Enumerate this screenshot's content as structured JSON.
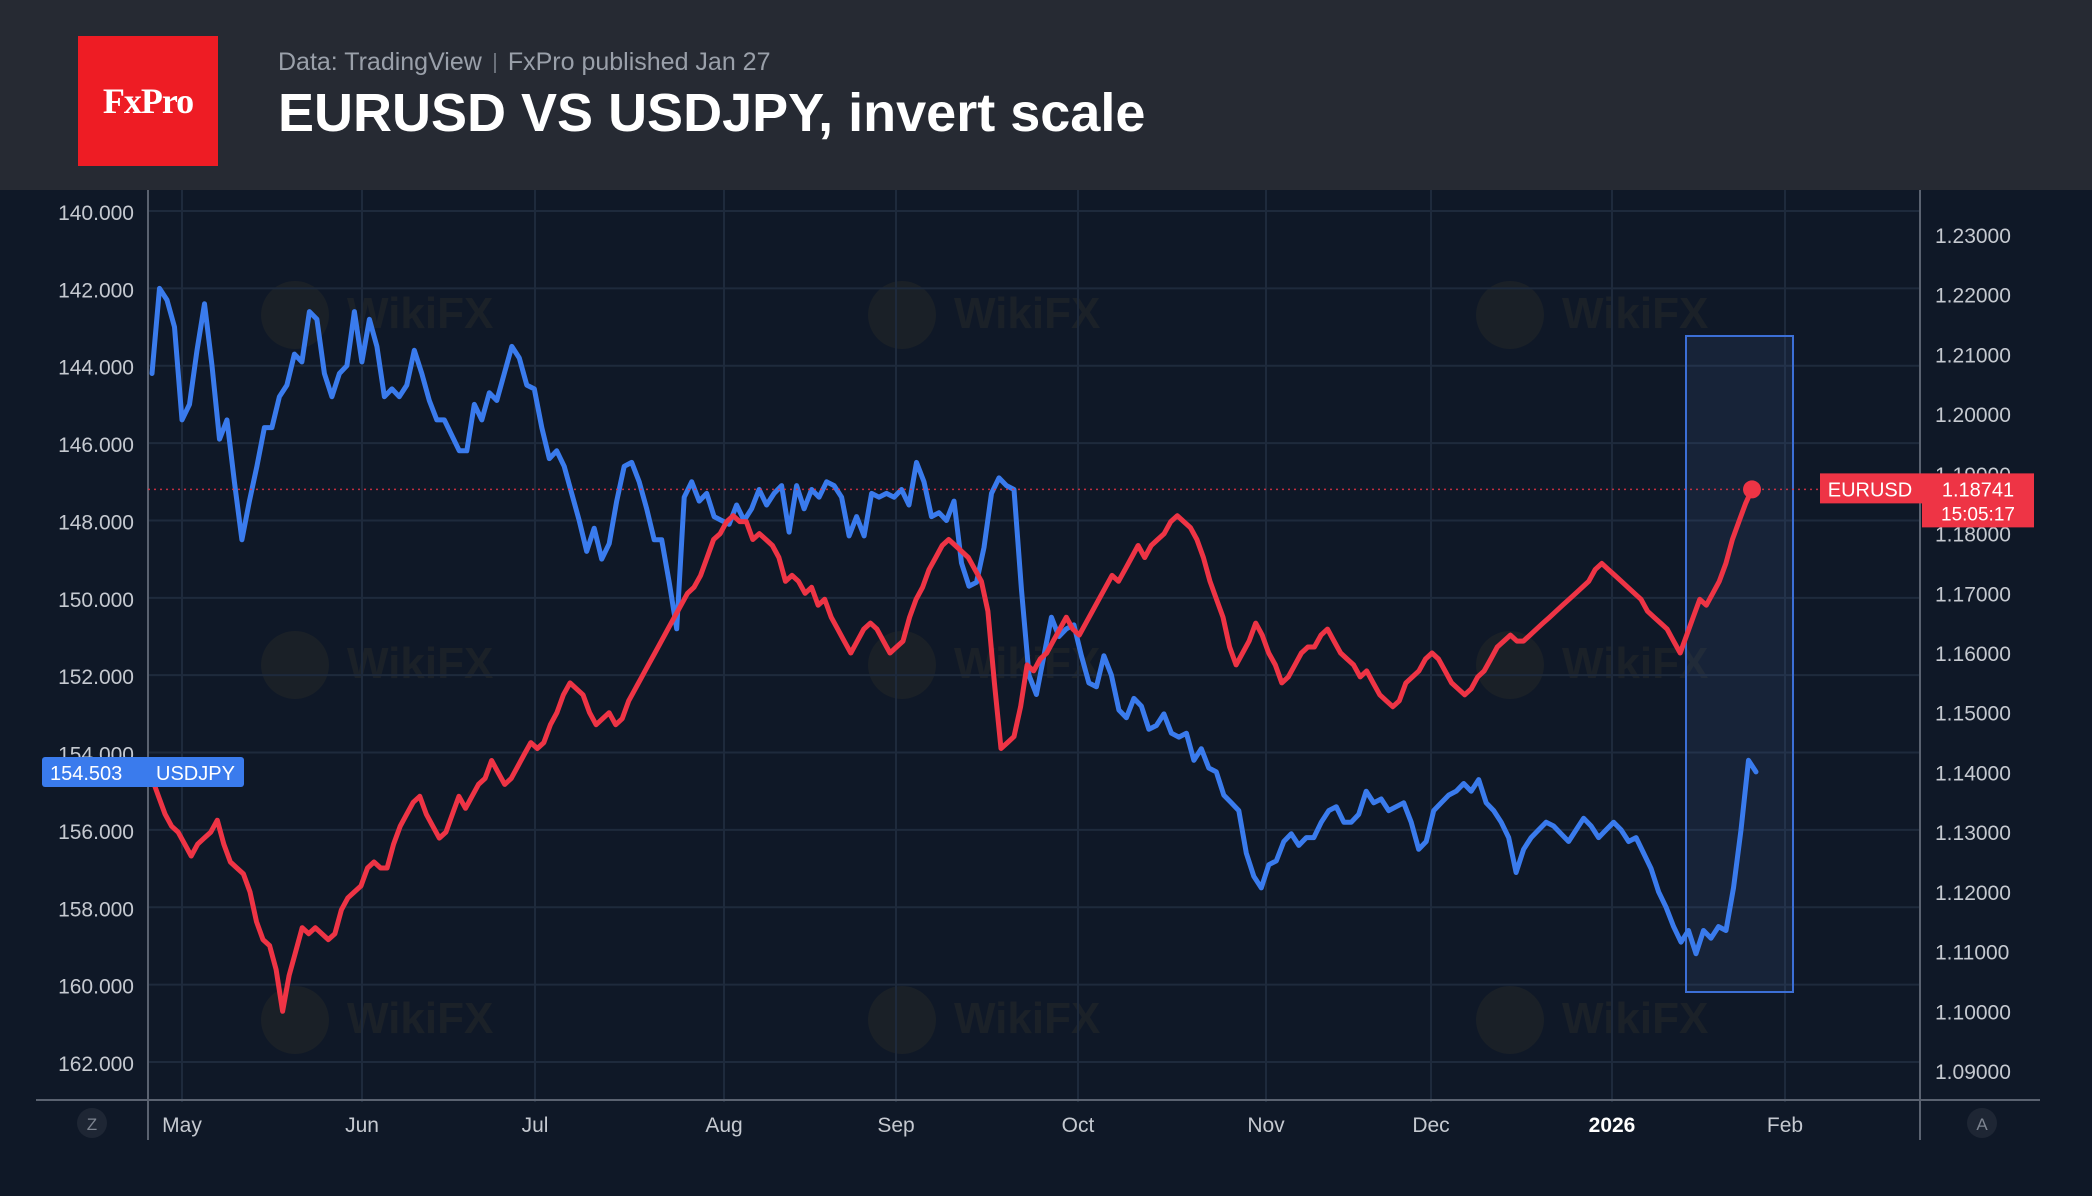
{
  "header": {
    "logo_text": "FxPro",
    "source": "Data: TradingView",
    "published": "FxPro published Jan 27",
    "title": "EURUSD VS USDJPY, invert scale"
  },
  "colors": {
    "background": "#0f1827",
    "header_bg": "#262a33",
    "usdjpy": "#3a7bed",
    "eurusd": "#ee3445",
    "grid": "#1e2a3c",
    "axis_text": "#c5c9d0",
    "highlight_box": "#3c6fd6"
  },
  "watermark_text": "WikiFX",
  "chart_data": {
    "type": "line",
    "x_axis": {
      "ticks": [
        "May",
        "Jun",
        "Jul",
        "Aug",
        "Sep",
        "Oct",
        "Nov",
        "Dec",
        "2026",
        "Feb"
      ],
      "bold_tick": "2026"
    },
    "left_axis": {
      "series": "USDJPY",
      "inverted": true,
      "ticks": [
        "140.000",
        "142.000",
        "144.000",
        "146.000",
        "148.000",
        "150.000",
        "152.000",
        "154.000",
        "156.000",
        "158.000",
        "160.000",
        "162.000"
      ],
      "range": [
        140,
        162
      ]
    },
    "right_axis": {
      "series": "EURUSD",
      "ticks": [
        "1.23000",
        "1.22000",
        "1.21000",
        "1.20000",
        "1.19000",
        "1.18000",
        "1.17000",
        "1.16000",
        "1.15000",
        "1.14000",
        "1.13000",
        "1.12000",
        "1.11000",
        "1.10000",
        "1.09000"
      ],
      "range": [
        1.09,
        1.23
      ]
    },
    "corner_buttons": {
      "left": "Z",
      "right": "A"
    },
    "series": [
      {
        "name": "USDJPY",
        "axis": "left",
        "last_value_label": "154.503",
        "values": [
          144.2,
          142.0,
          142.3,
          143.0,
          145.4,
          145.0,
          143.6,
          142.4,
          144.0,
          145.9,
          145.4,
          147.0,
          148.5,
          147.5,
          146.6,
          145.6,
          145.6,
          144.8,
          144.5,
          143.7,
          143.9,
          142.6,
          142.8,
          144.2,
          144.8,
          144.2,
          144.0,
          142.6,
          143.9,
          142.8,
          143.5,
          144.8,
          144.6,
          144.8,
          144.5,
          143.6,
          144.2,
          144.9,
          145.4,
          145.4,
          145.8,
          146.2,
          146.2,
          145.0,
          145.4,
          144.7,
          144.9,
          144.2,
          143.5,
          143.8,
          144.5,
          144.6,
          145.6,
          146.4,
          146.2,
          146.6,
          147.3,
          148.0,
          148.8,
          148.2,
          149.0,
          148.6,
          147.5,
          146.6,
          146.5,
          147.0,
          147.7,
          148.5,
          148.5,
          149.6,
          150.8,
          147.4,
          147.0,
          147.5,
          147.3,
          147.9,
          148.0,
          148.1,
          147.6,
          148.0,
          147.7,
          147.2,
          147.6,
          147.3,
          147.1,
          148.3,
          147.1,
          147.7,
          147.2,
          147.4,
          147.0,
          147.1,
          147.4,
          148.4,
          147.9,
          148.4,
          147.3,
          147.4,
          147.3,
          147.4,
          147.2,
          147.6,
          146.5,
          147.0,
          147.9,
          147.8,
          148.0,
          147.5,
          149.1,
          149.7,
          149.6,
          148.7,
          147.3,
          146.9,
          147.1,
          147.2,
          149.8,
          152.0,
          152.5,
          151.5,
          150.5,
          151.0,
          150.8,
          150.7,
          151.5,
          152.2,
          152.3,
          151.5,
          152.0,
          152.9,
          153.1,
          152.6,
          152.8,
          153.4,
          153.3,
          153.0,
          153.5,
          153.6,
          153.5,
          154.2,
          153.9,
          154.4,
          154.5,
          155.1,
          155.3,
          155.5,
          156.6,
          157.2,
          157.5,
          156.9,
          156.8,
          156.3,
          156.1,
          156.4,
          156.2,
          156.2,
          155.8,
          155.5,
          155.4,
          155.8,
          155.8,
          155.6,
          155.0,
          155.3,
          155.2,
          155.5,
          155.4,
          155.3,
          155.8,
          156.5,
          156.3,
          155.5,
          155.3,
          155.1,
          155.0,
          154.8,
          155.0,
          154.7,
          155.3,
          155.5,
          155.8,
          156.2,
          157.1,
          156.5,
          156.2,
          156.0,
          155.8,
          155.9,
          156.1,
          156.3,
          156.0,
          155.7,
          155.9,
          156.2,
          156.0,
          155.8,
          156.0,
          156.3,
          156.2,
          156.6,
          157.0,
          157.6,
          158.0,
          158.5,
          158.9,
          158.6,
          159.2,
          158.6,
          158.8,
          158.5,
          158.6,
          157.5,
          156.0,
          154.2,
          154.5
        ]
      },
      {
        "name": "EURUSD",
        "axis": "right",
        "last_value_label": "1.18741",
        "countdown_label": "15:05:17",
        "values": [
          1.139,
          1.136,
          1.133,
          1.131,
          1.13,
          1.128,
          1.126,
          1.128,
          1.129,
          1.13,
          1.132,
          1.128,
          1.125,
          1.124,
          1.123,
          1.12,
          1.115,
          1.112,
          1.111,
          1.107,
          1.1,
          1.106,
          1.11,
          1.114,
          1.113,
          1.114,
          1.113,
          1.112,
          1.113,
          1.117,
          1.119,
          1.12,
          1.121,
          1.124,
          1.125,
          1.124,
          1.124,
          1.128,
          1.131,
          1.133,
          1.135,
          1.136,
          1.133,
          1.131,
          1.129,
          1.13,
          1.133,
          1.136,
          1.134,
          1.136,
          1.138,
          1.139,
          1.142,
          1.14,
          1.138,
          1.139,
          1.141,
          1.143,
          1.145,
          1.144,
          1.145,
          1.148,
          1.15,
          1.153,
          1.155,
          1.154,
          1.153,
          1.15,
          1.148,
          1.149,
          1.15,
          1.148,
          1.149,
          1.152,
          1.154,
          1.156,
          1.158,
          1.16,
          1.162,
          1.164,
          1.166,
          1.168,
          1.17,
          1.171,
          1.173,
          1.176,
          1.179,
          1.18,
          1.182,
          1.183,
          1.182,
          1.182,
          1.179,
          1.18,
          1.179,
          1.178,
          1.176,
          1.172,
          1.173,
          1.172,
          1.17,
          1.171,
          1.168,
          1.169,
          1.166,
          1.164,
          1.162,
          1.16,
          1.162,
          1.164,
          1.165,
          1.164,
          1.162,
          1.16,
          1.161,
          1.162,
          1.166,
          1.169,
          1.171,
          1.174,
          1.176,
          1.178,
          1.179,
          1.178,
          1.177,
          1.176,
          1.174,
          1.172,
          1.167,
          1.155,
          1.144,
          1.145,
          1.146,
          1.151,
          1.158,
          1.157,
          1.159,
          1.16,
          1.162,
          1.164,
          1.166,
          1.164,
          1.163,
          1.165,
          1.167,
          1.169,
          1.171,
          1.173,
          1.172,
          1.174,
          1.176,
          1.178,
          1.176,
          1.178,
          1.179,
          1.18,
          1.182,
          1.183,
          1.182,
          1.181,
          1.179,
          1.176,
          1.172,
          1.169,
          1.166,
          1.161,
          1.158,
          1.16,
          1.162,
          1.165,
          1.163,
          1.16,
          1.158,
          1.155,
          1.156,
          1.158,
          1.16,
          1.161,
          1.161,
          1.163,
          1.164,
          1.162,
          1.16,
          1.159,
          1.158,
          1.156,
          1.157,
          1.155,
          1.153,
          1.152,
          1.151,
          1.152,
          1.155,
          1.156,
          1.157,
          1.159,
          1.16,
          1.159,
          1.157,
          1.155,
          1.154,
          1.153,
          1.154,
          1.156,
          1.157,
          1.159,
          1.161,
          1.162,
          1.163,
          1.162,
          1.162,
          1.163,
          1.164,
          1.165,
          1.166,
          1.167,
          1.168,
          1.169,
          1.17,
          1.171,
          1.172,
          1.174,
          1.175,
          1.174,
          1.173,
          1.172,
          1.171,
          1.17,
          1.169,
          1.167,
          1.166,
          1.165,
          1.164,
          1.162,
          1.16,
          1.163,
          1.166,
          1.169,
          1.168,
          1.17,
          1.172,
          1.175,
          1.179,
          1.182,
          1.185,
          1.1874
        ]
      }
    ],
    "highlight": {
      "description_visible": false
    }
  }
}
